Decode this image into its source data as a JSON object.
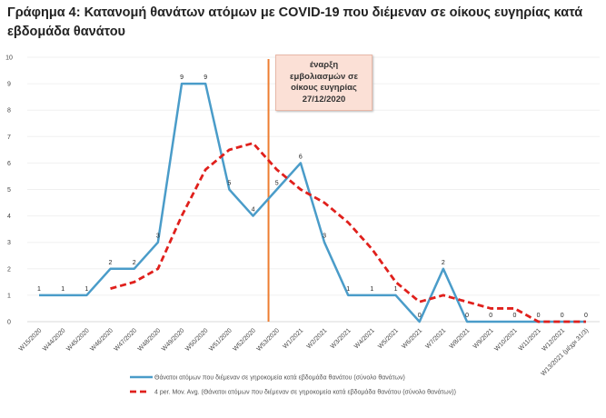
{
  "chart_data": {
    "type": "line",
    "title": "Γράφημα 4: Κατανομή θανάτων ατόμων με COVID-19 που διέμεναν σε οίκους ευγηρίας κατά εβδομάδα θανάτου",
    "xlabel": "",
    "ylabel": "",
    "ylim": [
      0,
      10
    ],
    "yticks": [
      "0",
      "1",
      "2",
      "3",
      "4",
      "5",
      "6",
      "7",
      "8",
      "9",
      "10"
    ],
    "grid": true,
    "legend_position": "bottom",
    "categories": [
      "W15/2020",
      "W44/2020",
      "W45/2020",
      "W46/2020",
      "W47/2020",
      "W48/2020",
      "W49/2020",
      "W50/2020",
      "W51/2020",
      "W52/2020",
      "W53/2020",
      "W1/2021",
      "W2/2021",
      "W3/2021",
      "W4/2021",
      "W5/2021",
      "W6/2021",
      "W7/2021",
      "W8/2021",
      "W9/2021",
      "W10/2021",
      "W11/2021",
      "W12/2021",
      "W13/2021 (μέχρι 31/3)"
    ],
    "series": [
      {
        "name": "Θάνατοι ατόμων που διέμεναν σε γηροκομεία κατά εβδομάδα θανάτου (σύνολο θανάτων)",
        "color": "#4a9cc9",
        "style": "solid",
        "values": [
          1,
          1,
          1,
          2,
          2,
          3,
          9,
          9,
          5,
          4,
          5,
          6,
          3,
          1,
          1,
          1,
          0,
          2,
          0,
          0,
          0,
          0,
          0,
          0
        ]
      },
      {
        "name": "4 per. Mov. Avg. (Θάνατοι ατόμων που διέμεναν σε γηροκομεία κατά εβδομάδα θανάτου (σύνολο θανάτων))",
        "color": "#e0201c",
        "style": "dashed",
        "values": [
          null,
          null,
          null,
          1.25,
          1.5,
          2,
          4,
          5.75,
          6.5,
          6.75,
          5.75,
          5,
          4.5,
          3.75,
          2.75,
          1.5,
          0.75,
          1,
          0.75,
          0.5,
          0.5,
          0,
          0,
          0
        ]
      }
    ],
    "annotation": {
      "text": "έναρξη\nεμβολιασμών σε\nοίκους ευγηρίας\n27/12/2020",
      "marker_between": [
        "W52/2020",
        "W53/2020"
      ],
      "line_color": "#ed7d31",
      "box_color": "#fbe0d6"
    }
  }
}
